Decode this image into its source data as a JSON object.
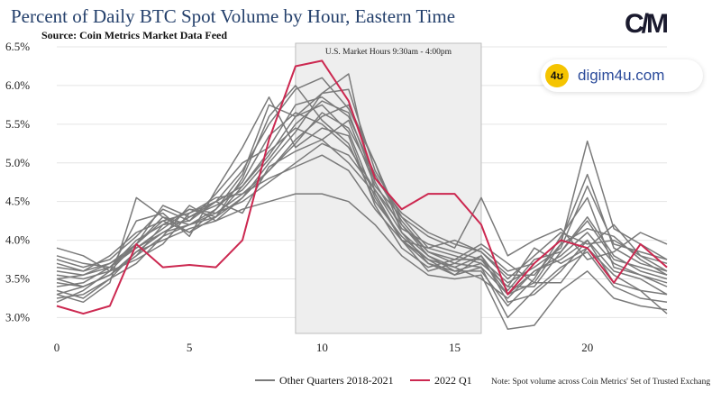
{
  "header": {
    "title": "Percent of Daily BTC Spot Volume by Hour, Eastern Time",
    "subtitle": "Source: Coin Metrics Market Data Feed",
    "logo": "C/M"
  },
  "watermark": {
    "badge": "4ʊ",
    "text": "digim4u.com"
  },
  "chart_data": {
    "type": "line",
    "title": "Percent of Daily BTC Spot Volume by Hour, Eastern Time",
    "subtitle": "Source: Coin Metrics Market Data Feed",
    "x": [
      0,
      1,
      2,
      3,
      4,
      5,
      6,
      7,
      8,
      9,
      10,
      11,
      12,
      13,
      14,
      15,
      16,
      17,
      18,
      19,
      20,
      21,
      22,
      23
    ],
    "xlim": [
      0,
      23
    ],
    "ylim": [
      2.9,
      6.5
    ],
    "x_ticks": [
      0,
      5,
      10,
      15,
      20
    ],
    "y_ticks": [
      3.0,
      3.5,
      4.0,
      4.5,
      5.0,
      5.5,
      6.0,
      6.5
    ],
    "y_tick_labels": [
      "3.0%",
      "3.5%",
      "4.0%",
      "4.5%",
      "5.0%",
      "5.5%",
      "6.0%",
      "6.5%"
    ],
    "grid": "horizontal",
    "shaded_region": {
      "x_start": 9,
      "x_end": 16,
      "label": "U.S. Market Hours 9:30am - 4:00pm"
    },
    "highlight_series": {
      "name": "2022 Q1",
      "color": "#cc2850",
      "values": [
        3.15,
        3.05,
        3.15,
        3.95,
        3.65,
        3.68,
        3.65,
        4.0,
        5.3,
        6.25,
        6.32,
        5.8,
        4.8,
        4.4,
        4.6,
        4.6,
        4.2,
        3.3,
        3.7,
        4.0,
        3.9,
        3.45,
        3.95,
        3.65
      ]
    },
    "background_series_label": "Other Quarters 2018-2021",
    "background_color": "#7a7a7a",
    "series": [
      {
        "values": [
          3.6,
          3.55,
          3.7,
          3.9,
          4.1,
          4.2,
          4.35,
          4.6,
          4.9,
          5.3,
          5.6,
          5.75,
          5.0,
          4.2,
          3.8,
          3.65,
          3.5,
          3.25,
          3.6,
          3.8,
          4.1,
          3.7,
          3.55,
          3.4
        ]
      },
      {
        "values": [
          3.3,
          3.2,
          3.45,
          4.55,
          4.3,
          4.1,
          4.4,
          4.85,
          5.75,
          5.6,
          5.9,
          6.15,
          4.6,
          4.0,
          3.9,
          3.8,
          3.7,
          3.4,
          3.9,
          3.7,
          3.9,
          4.2,
          3.8,
          3.7
        ]
      },
      {
        "values": [
          3.2,
          3.35,
          3.6,
          3.75,
          3.95,
          4.35,
          4.5,
          4.9,
          5.5,
          5.95,
          6.1,
          5.7,
          5.0,
          4.1,
          3.7,
          3.55,
          3.8,
          3.2,
          3.3,
          3.6,
          4.0,
          3.6,
          3.5,
          3.3
        ]
      },
      {
        "values": [
          3.5,
          3.4,
          3.55,
          3.8,
          4.2,
          4.4,
          4.3,
          4.7,
          5.1,
          5.6,
          5.75,
          5.4,
          4.55,
          4.0,
          3.6,
          3.7,
          3.9,
          3.6,
          3.7,
          4.0,
          4.85,
          3.9,
          3.7,
          3.6
        ]
      },
      {
        "values": [
          3.8,
          3.7,
          3.65,
          3.95,
          4.45,
          4.3,
          4.5,
          4.35,
          4.95,
          5.15,
          5.3,
          5.55,
          4.7,
          4.3,
          4.05,
          3.9,
          4.55,
          3.8,
          4.0,
          4.15,
          3.75,
          3.85,
          4.1,
          3.95
        ]
      },
      {
        "values": [
          3.35,
          3.25,
          3.5,
          3.85,
          4.0,
          4.15,
          4.25,
          4.55,
          5.0,
          5.4,
          5.9,
          5.95,
          4.9,
          4.3,
          3.9,
          4.0,
          3.85,
          3.55,
          3.55,
          3.95,
          4.15,
          4.05,
          3.75,
          3.55
        ]
      },
      {
        "values": [
          3.9,
          3.8,
          3.6,
          4.25,
          4.35,
          4.05,
          4.65,
          5.2,
          5.85,
          5.2,
          5.45,
          5.35,
          4.45,
          3.9,
          3.65,
          3.75,
          3.95,
          3.7,
          3.45,
          3.45,
          3.9,
          3.55,
          3.35,
          3.3
        ]
      },
      {
        "values": [
          3.7,
          3.6,
          3.8,
          4.1,
          4.25,
          4.35,
          4.55,
          4.6,
          4.8,
          4.95,
          5.1,
          4.9,
          4.4,
          4.0,
          3.75,
          3.65,
          3.8,
          3.35,
          3.75,
          3.85,
          4.25,
          3.75,
          3.65,
          3.55
        ]
      },
      {
        "values": [
          3.25,
          3.3,
          3.5,
          3.7,
          4.05,
          4.45,
          4.25,
          4.4,
          4.5,
          4.6,
          4.6,
          4.5,
          4.2,
          3.8,
          3.55,
          3.5,
          3.55,
          2.85,
          2.9,
          3.35,
          3.6,
          3.25,
          3.15,
          3.1
        ]
      },
      {
        "values": [
          3.55,
          3.5,
          3.6,
          3.95,
          4.3,
          4.2,
          4.4,
          4.75,
          5.35,
          5.65,
          5.5,
          5.2,
          4.65,
          4.2,
          3.85,
          3.7,
          3.65,
          3.0,
          3.35,
          3.65,
          3.85,
          3.4,
          3.25,
          3.2
        ]
      },
      {
        "values": [
          3.45,
          3.4,
          3.55,
          3.85,
          4.1,
          4.3,
          4.45,
          4.65,
          5.05,
          5.5,
          5.8,
          5.65,
          4.75,
          4.15,
          3.95,
          3.85,
          3.75,
          3.45,
          3.65,
          3.9,
          4.7,
          3.95,
          3.85,
          3.75
        ]
      },
      {
        "values": [
          3.75,
          3.65,
          3.75,
          4.05,
          4.4,
          4.25,
          4.6,
          5.0,
          5.2,
          5.75,
          5.85,
          5.6,
          4.85,
          4.25,
          3.85,
          3.75,
          3.75,
          3.3,
          3.45,
          3.95,
          5.28,
          4.15,
          3.95,
          3.75
        ]
      },
      {
        "values": [
          3.4,
          3.45,
          3.65,
          3.9,
          4.15,
          4.4,
          4.35,
          4.5,
          4.75,
          5.0,
          5.25,
          5.1,
          4.65,
          4.1,
          3.8,
          3.6,
          3.6,
          3.15,
          3.5,
          4.05,
          4.55,
          3.65,
          3.55,
          3.45
        ]
      },
      {
        "values": [
          3.65,
          3.6,
          3.7,
          3.95,
          4.25,
          4.1,
          4.3,
          4.8,
          5.6,
          6.0,
          5.55,
          5.25,
          4.5,
          4.05,
          3.75,
          3.55,
          3.65,
          3.3,
          3.6,
          3.75,
          4.0,
          3.45,
          3.35,
          3.05
        ]
      },
      {
        "values": [
          3.5,
          3.55,
          3.65,
          4.0,
          4.2,
          4.25,
          4.5,
          4.7,
          5.15,
          5.45,
          5.3,
          5.0,
          4.6,
          4.0,
          3.7,
          3.6,
          3.7,
          3.4,
          3.4,
          3.85,
          4.3,
          3.8,
          3.6,
          3.5
        ]
      },
      {
        "values": [
          3.3,
          3.4,
          3.55,
          3.8,
          4.05,
          4.2,
          4.3,
          4.55,
          4.9,
          5.25,
          5.65,
          5.45,
          4.8,
          4.35,
          4.1,
          3.95,
          3.85,
          3.5,
          3.8,
          4.1,
          3.95,
          4.0,
          3.8,
          3.6
        ]
      }
    ],
    "legend": {
      "position": "bottom",
      "entries": [
        {
          "label": "Other Quarters 2018-2021",
          "color": "#7a7a7a"
        },
        {
          "label": "2022 Q1",
          "color": "#cc2850"
        }
      ]
    },
    "note": "Note: Spot volume across Coin Metrics' Set of Trusted Exchang"
  }
}
